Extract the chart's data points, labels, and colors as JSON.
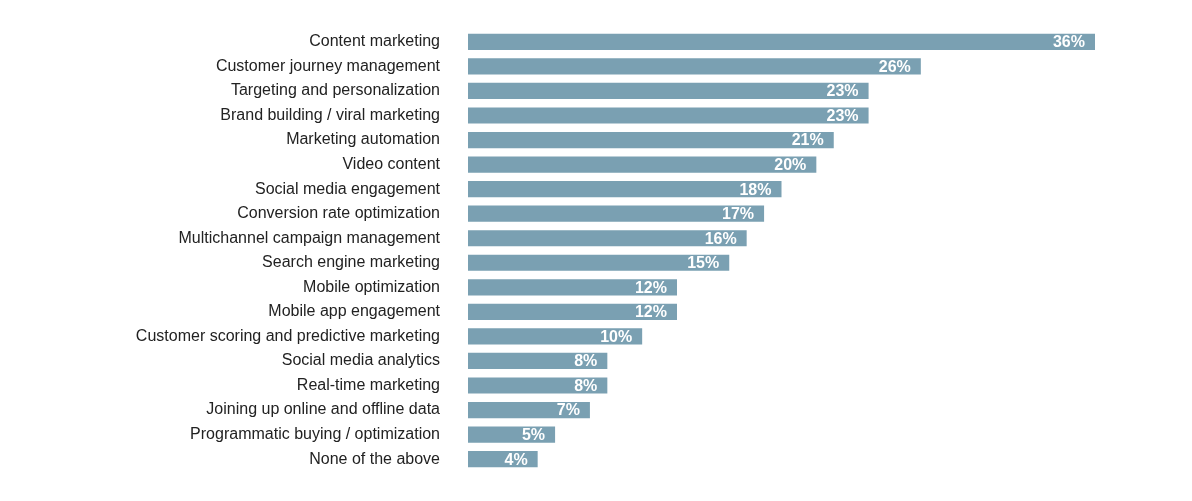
{
  "chart_data": {
    "type": "bar",
    "orientation": "horizontal",
    "color": "#7aa0b2",
    "tick_labels": "y",
    "categories": [
      "Content marketing",
      "Customer journey management",
      "Targeting and personalization",
      "Brand building / viral marketing",
      "Marketing automation",
      "Video content",
      "Social media engagement",
      "Conversion rate optimization",
      "Multichannel campaign management",
      "Search engine marketing",
      "Mobile optimization",
      "Mobile app engagement",
      "Customer scoring and predictive marketing",
      "Social media analytics",
      "Real-time marketing",
      "Joining up online and offline data",
      "Programmatic buying / optimization",
      "None of the above"
    ],
    "values": [
      36,
      26,
      23,
      23,
      21,
      20,
      18,
      17,
      16,
      15,
      12,
      12,
      10,
      8,
      8,
      7,
      5,
      4
    ],
    "value_labels": [
      "36%",
      "26%",
      "23%",
      "23%",
      "21%",
      "20%",
      "18%",
      "17%",
      "16%",
      "15%",
      "12%",
      "12%",
      "10%",
      "8%",
      "8%",
      "7%",
      "5%",
      "4%"
    ]
  }
}
